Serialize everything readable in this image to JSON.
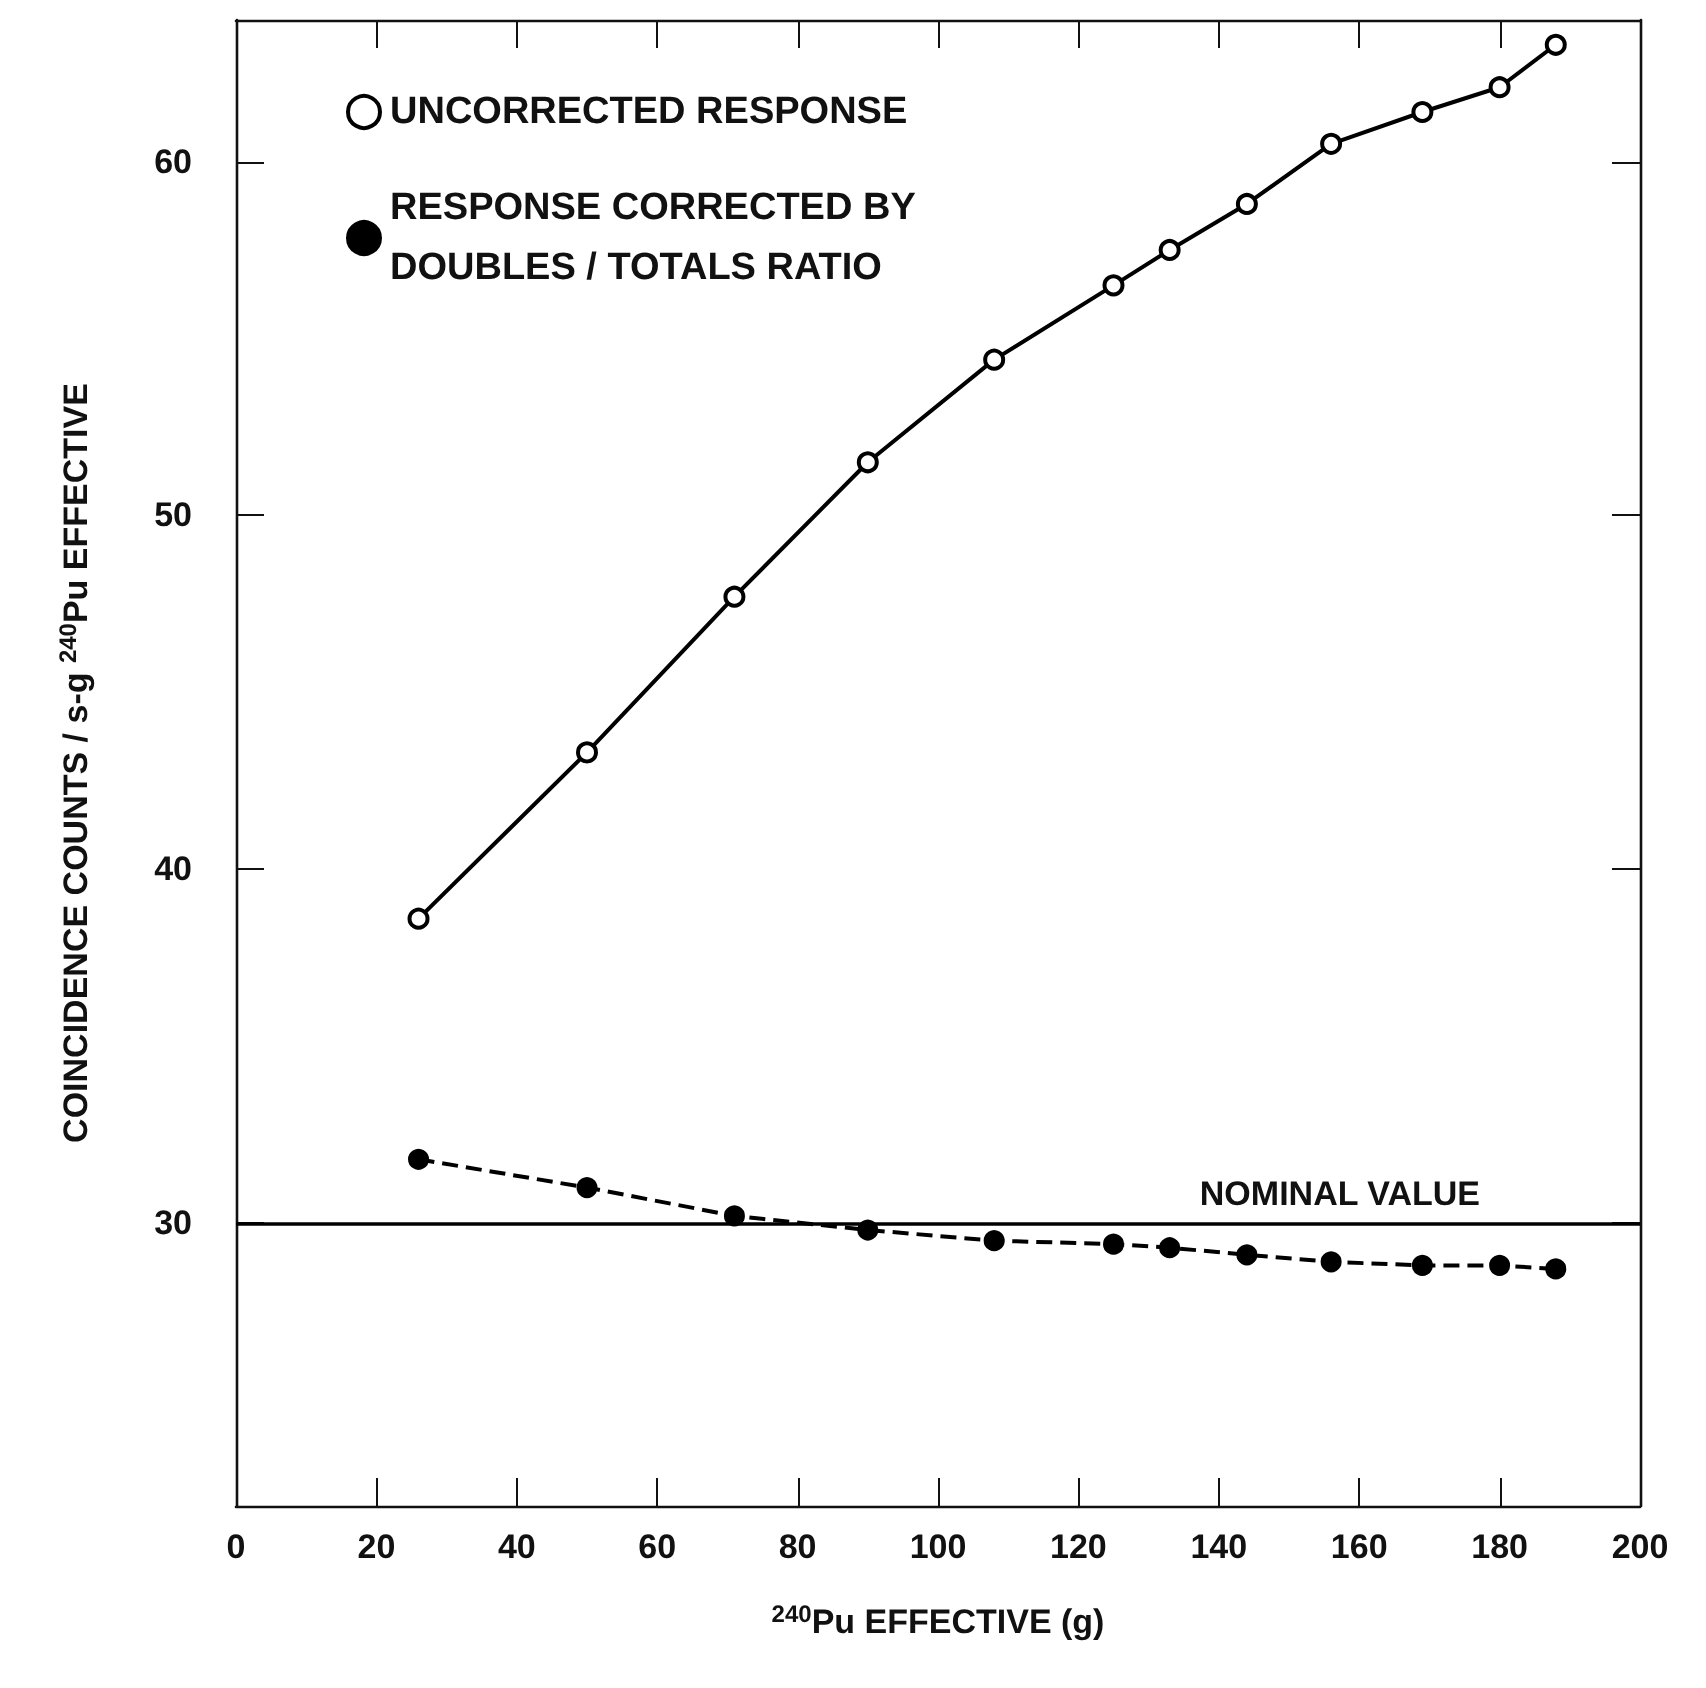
{
  "chart_data": {
    "type": "line",
    "xlabel": "$^{240}$Pu EFFECTIVE (g)",
    "ylabel": "COINCIDENCE COUNTS / s-g $^{240}$Pu EFFECTIVE",
    "x": [
      26,
      50,
      71,
      90,
      108,
      125,
      133,
      144,
      156,
      169,
      180,
      188
    ],
    "series": [
      {
        "name": "UNCORRECTED RESPONSE",
        "color": "#000000",
        "line_style": "solid",
        "marker": "circle",
        "values": [
          38.6,
          43.3,
          47.7,
          51.5,
          54.4,
          56.5,
          57.5,
          58.8,
          60.5,
          61.4,
          62.1,
          63.3
        ]
      },
      {
        "name": "RESPONSE CORRECTED BY DOUBLES / TOTALS RATIO",
        "color": "#000000",
        "line_style": "dashed",
        "marker": "circle",
        "values": [
          31.8,
          31.0,
          30.2,
          29.8,
          29.5,
          29.4,
          29.3,
          29.1,
          28.9,
          28.8,
          28.8,
          28.7
        ]
      }
    ],
    "xlim": [
      0,
      200
    ],
    "xticks": [
      0,
      20,
      40,
      60,
      80,
      100,
      120,
      140,
      160,
      180,
      200
    ],
    "ylim": [
      22,
      64
    ],
    "yticks": [
      30,
      40,
      50,
      60
    ],
    "ref_lines": [
      {
        "axis": "y",
        "value": 30,
        "label": "NOMINAL VALUE",
        "color": "#000000",
        "line_style": "solid"
      }
    ],
    "grid": false,
    "legend": "top left"
  }
}
